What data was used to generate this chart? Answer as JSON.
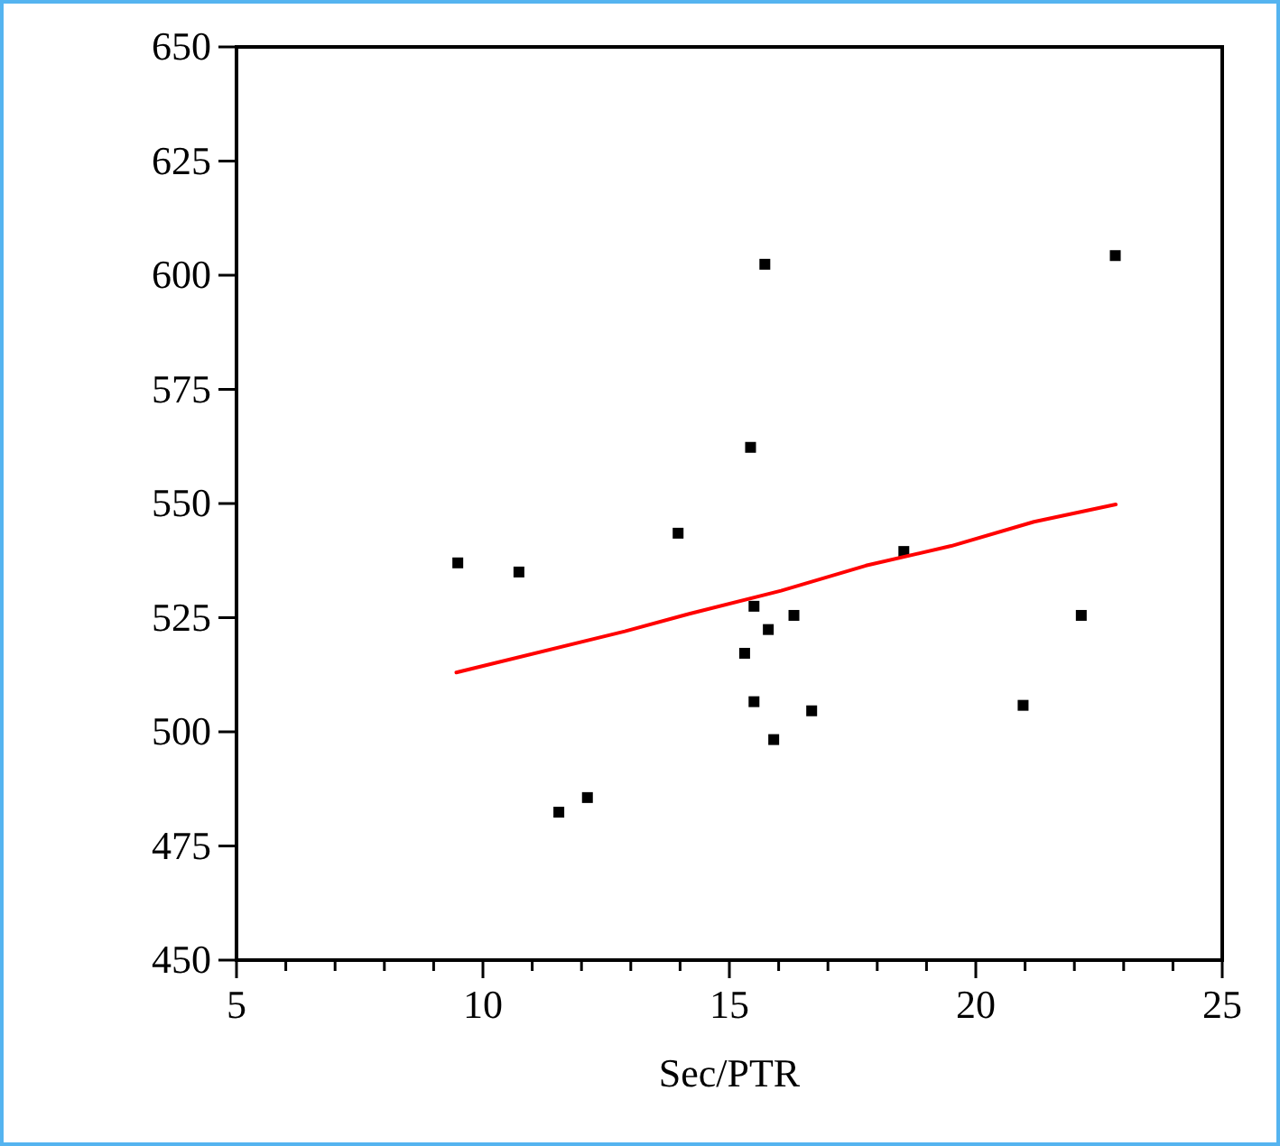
{
  "chart_data": {
    "type": "scatter",
    "xlabel": "Sec/PTR",
    "xlim": [
      5,
      25
    ],
    "ylim": [
      450,
      650
    ],
    "xticks": [
      5,
      {
        "value": 6,
        "label": null
      },
      {
        "value": 7,
        "label": null
      },
      {
        "value": 8,
        "label": null
      },
      {
        "value": 9,
        "label": null
      },
      10,
      {
        "value": 11,
        "label": null
      },
      {
        "value": 12,
        "label": null
      },
      {
        "value": 13,
        "label": null
      },
      {
        "value": 14,
        "label": null
      },
      15,
      {
        "value": 16,
        "label": null
      },
      {
        "value": 17,
        "label": null
      },
      {
        "value": 18,
        "label": null
      },
      {
        "value": 19,
        "label": null
      },
      20,
      {
        "value": 21,
        "label": null
      },
      {
        "value": 22,
        "label": null
      },
      {
        "value": 23,
        "label": null
      },
      {
        "value": 24,
        "label": null
      },
      25
    ],
    "yticks": [
      450,
      475,
      500,
      525,
      550,
      575,
      600,
      625,
      650
    ],
    "grid": false,
    "series": [
      {
        "marker": "square",
        "color": "#000000",
        "x": [
          9.49,
          10.73,
          13.96,
          11.54,
          12.12,
          15.72,
          22.83,
          15.43,
          18.54,
          15.5,
          16.31,
          22.14,
          15.79,
          15.31,
          15.5,
          16.67,
          20.96,
          15.9
        ],
        "values": [
          537,
          535,
          543.5,
          482.4,
          485.6,
          602.4,
          604.3,
          562.3,
          539.5,
          527.5,
          525.5,
          525.5,
          522.4,
          517.2,
          506.6,
          504.6,
          505.8,
          498.3
        ]
      },
      {
        "type": "line",
        "marker": "none",
        "line_style": "solid",
        "color": "#ff0000",
        "x": [
          9.46,
          12.88,
          14.1,
          16.05,
          17.77,
          19.5,
          21.18,
          22.84
        ],
        "values": [
          513,
          522,
          525.6,
          530.9,
          536.4,
          540.7,
          546,
          549.8
        ]
      }
    ]
  }
}
